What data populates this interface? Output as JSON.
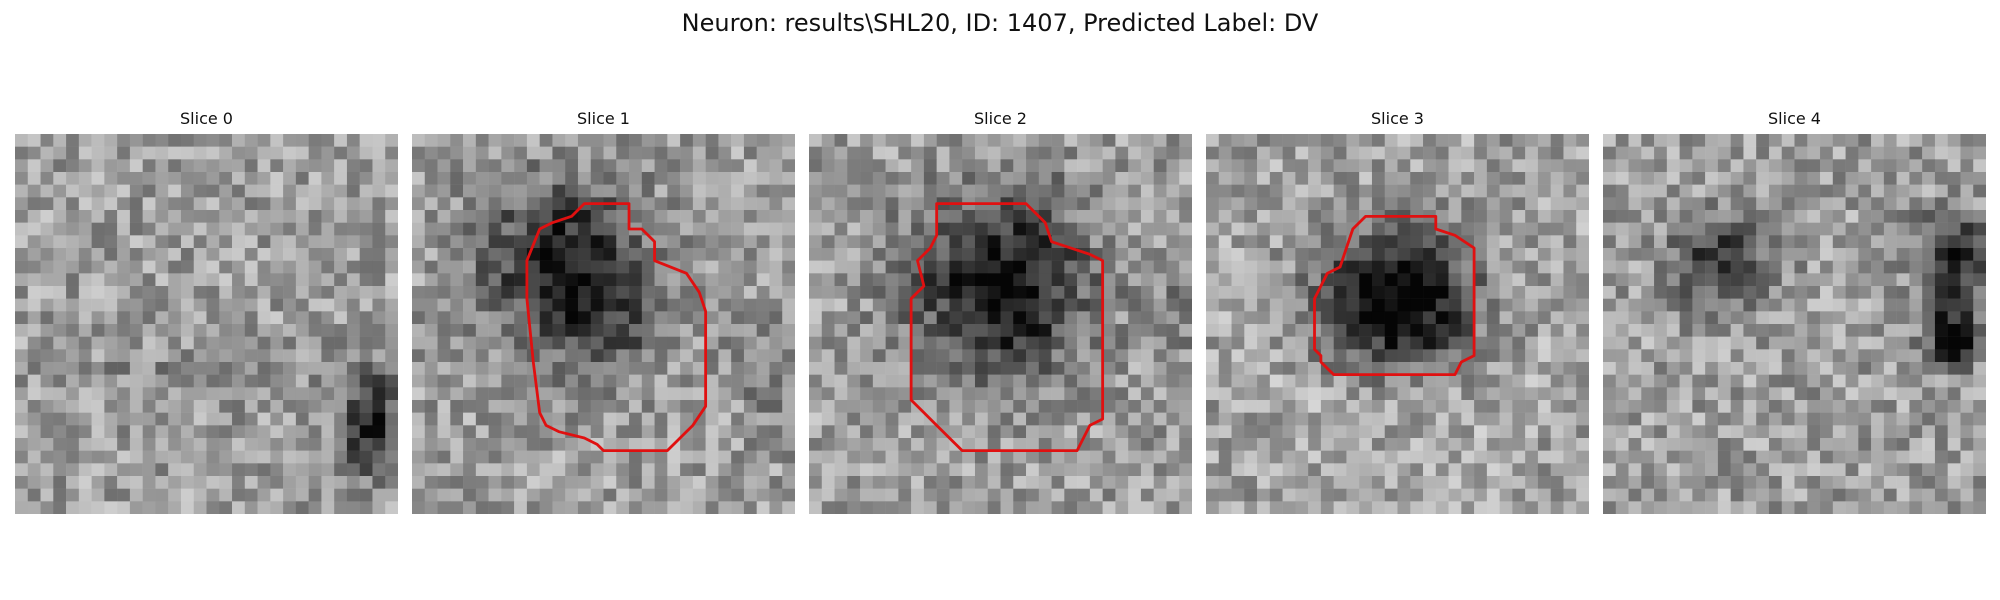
{
  "figure": {
    "title": "Neuron: results\\SHL20, ID: 1407, Predicted Label: DV"
  },
  "panels": [
    {
      "label": "Slice 0",
      "roi": false
    },
    {
      "label": "Slice 1",
      "roi": true
    },
    {
      "label": "Slice 2",
      "roi": true
    },
    {
      "label": "Slice 3",
      "roi": true
    },
    {
      "label": "Slice 4",
      "roi": false
    }
  ],
  "colors": {
    "contour": "#e01010",
    "background": "#ffffff",
    "colormap": "gray"
  }
}
